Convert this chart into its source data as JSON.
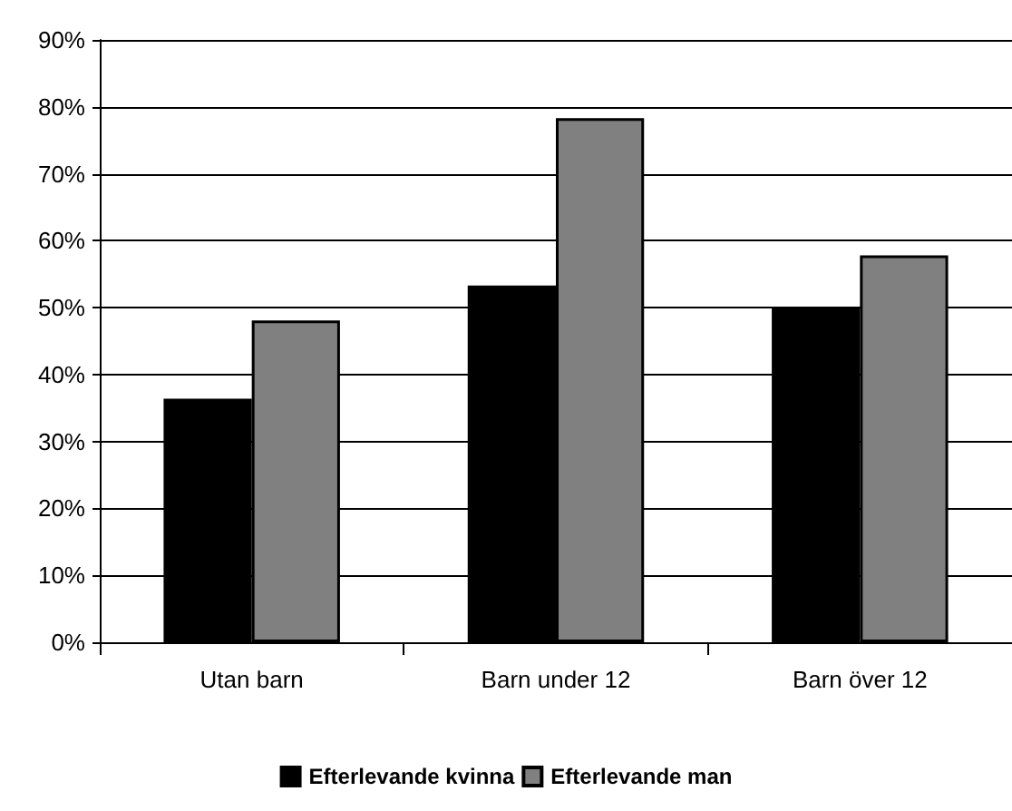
{
  "chart_data": {
    "type": "bar",
    "categories": [
      "Utan barn",
      "Barn under 12",
      "Barn över 12"
    ],
    "series": [
      {
        "name": "Efterlevande kvinna",
        "color": "#000000",
        "values": [
          36.4,
          53.3,
          50.0
        ]
      },
      {
        "name": "Efterlevande man",
        "color": "#808080",
        "values": [
          48.1,
          78.3,
          57.8
        ]
      }
    ],
    "ylim": [
      0,
      90
    ],
    "yticks": [
      {
        "value": 0,
        "label": "0%"
      },
      {
        "value": 10,
        "label": "10%"
      },
      {
        "value": 20,
        "label": "20%"
      },
      {
        "value": 30,
        "label": "30%"
      },
      {
        "value": 40,
        "label": "40%"
      },
      {
        "value": 50,
        "label": "50%"
      },
      {
        "value": 60,
        "label": "60%"
      },
      {
        "value": 70,
        "label": "70%"
      },
      {
        "value": 80,
        "label": "80%"
      },
      {
        "value": 90,
        "label": "90%"
      }
    ],
    "grid": "y",
    "legend": "bottom"
  }
}
